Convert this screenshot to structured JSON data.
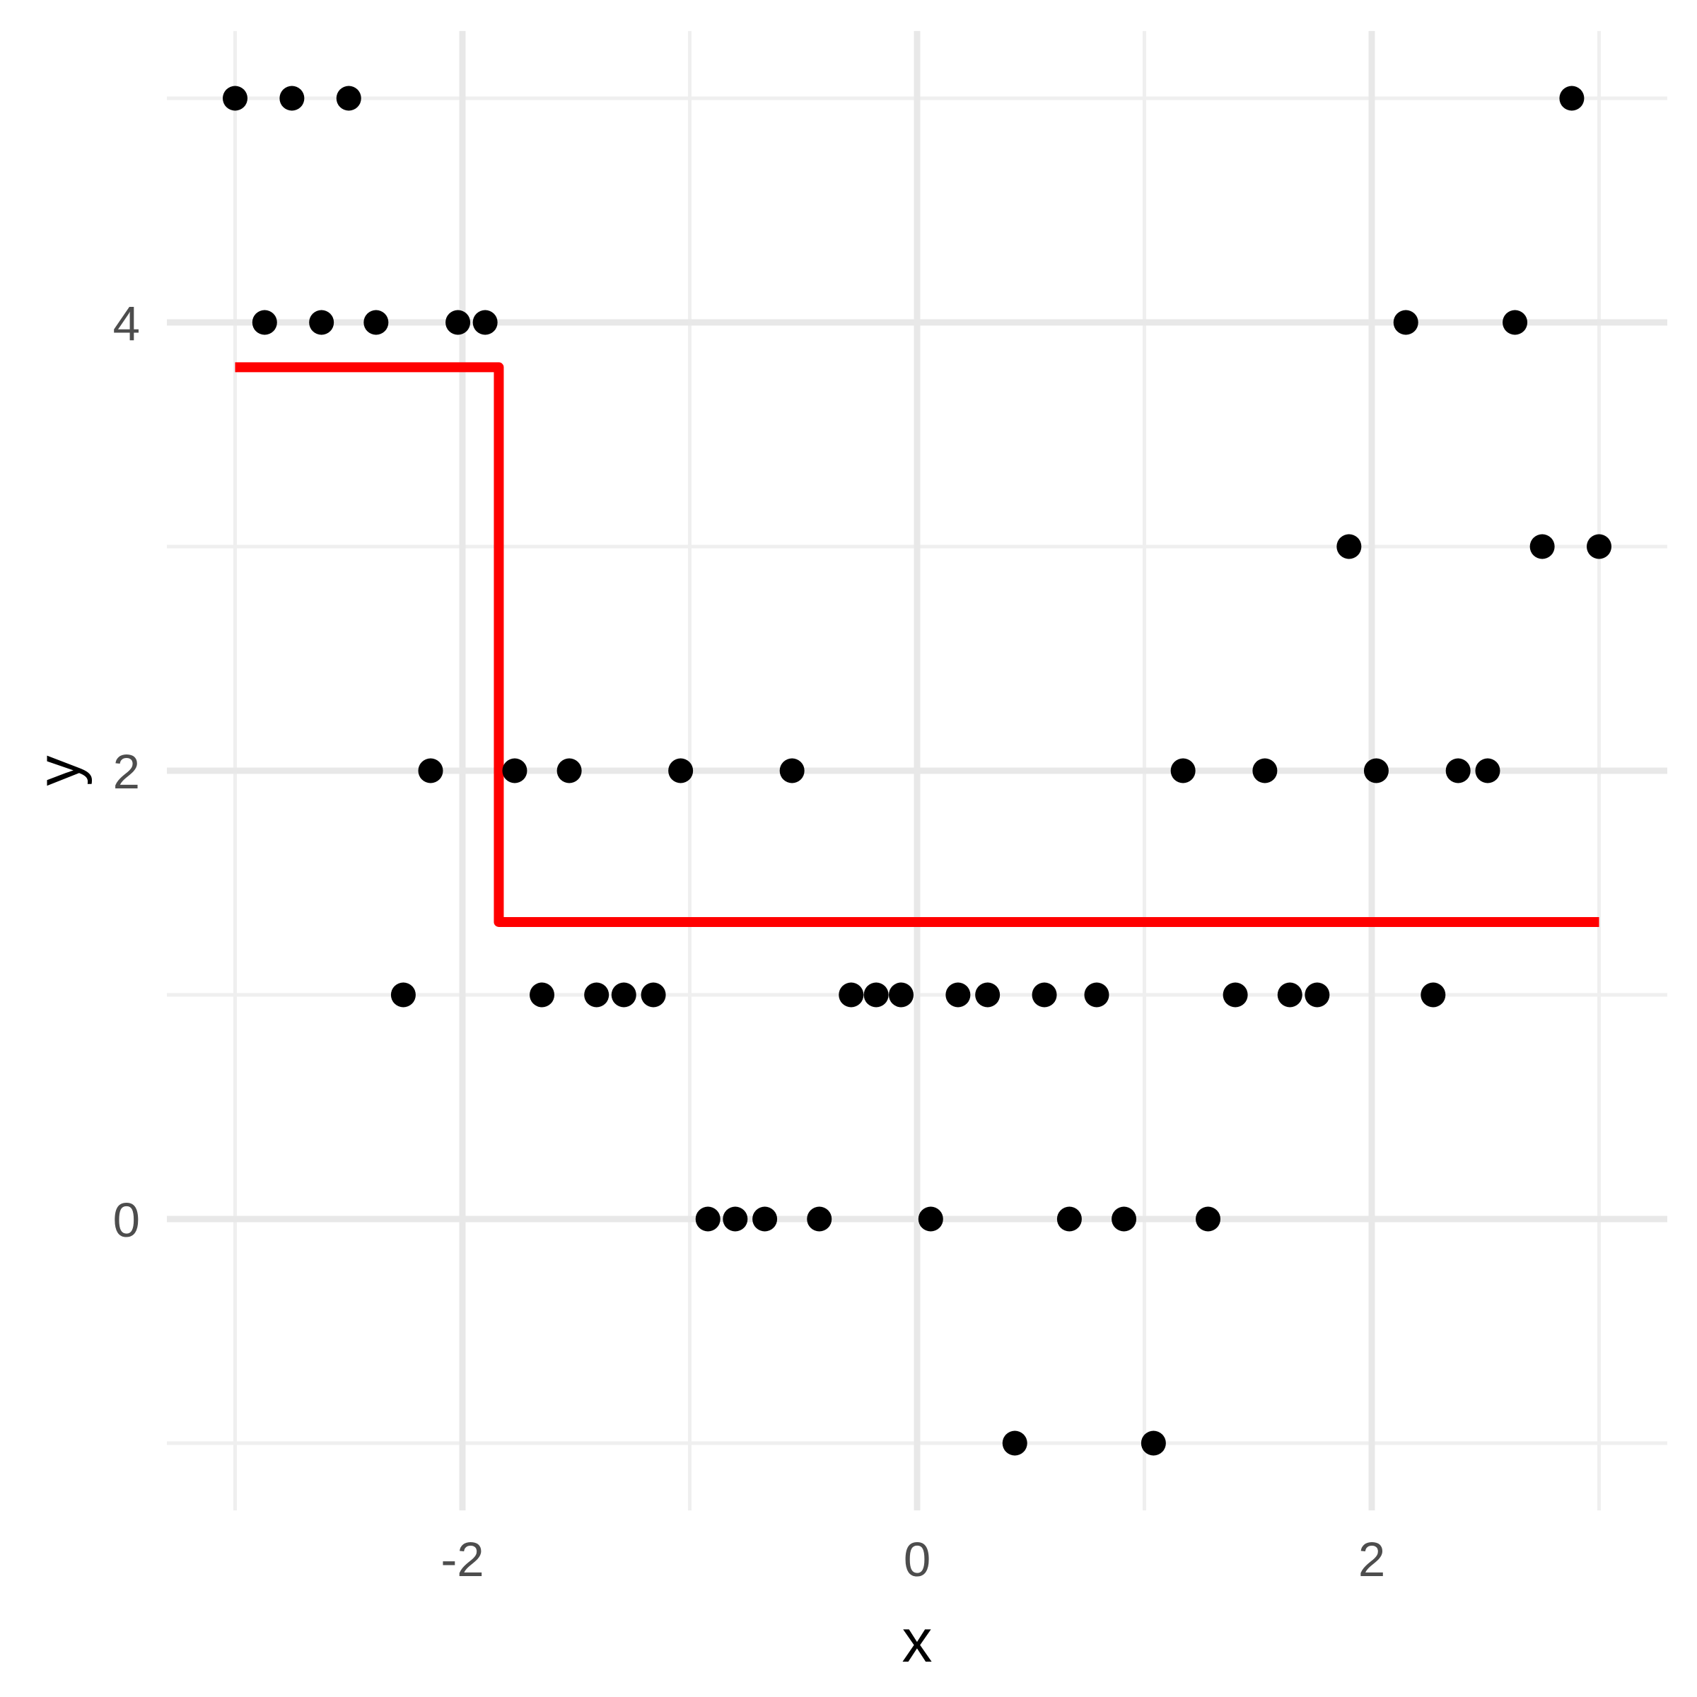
{
  "chart_data": {
    "type": "scatter",
    "title": "",
    "xlabel": "x",
    "ylabel": "y",
    "x_axis": {
      "major_ticks": [
        -2,
        0,
        2
      ],
      "major_tick_labels": [
        "-2",
        "0",
        "2"
      ],
      "minor_ticks": [
        -3,
        -1,
        1,
        3
      ],
      "xlim": [
        -3.3,
        3.3
      ]
    },
    "y_axis": {
      "major_ticks": [
        4,
        2,
        0
      ],
      "major_tick_labels": [
        "4",
        "2",
        "0"
      ],
      "minor_ticks": [
        5,
        3,
        1,
        -1
      ],
      "ylim": [
        -1.3,
        5.3
      ]
    },
    "grid": {
      "on": true,
      "major_color": "#e8e8e8",
      "minor_color": "#efefef",
      "major_width": 9,
      "minor_width": 5
    },
    "points": [
      [
        -3.0,
        5
      ],
      [
        -2.75,
        5
      ],
      [
        -2.5,
        5
      ],
      [
        2.88,
        5
      ],
      [
        -2.87,
        4
      ],
      [
        -2.62,
        4
      ],
      [
        -2.38,
        4
      ],
      [
        -2.02,
        4
      ],
      [
        -1.9,
        4
      ],
      [
        2.15,
        4
      ],
      [
        2.63,
        4
      ],
      [
        1.9,
        3
      ],
      [
        2.75,
        3
      ],
      [
        3.0,
        3
      ],
      [
        -2.14,
        2
      ],
      [
        -1.77,
        2
      ],
      [
        -1.53,
        2
      ],
      [
        -1.04,
        2
      ],
      [
        -0.55,
        2
      ],
      [
        1.17,
        2
      ],
      [
        1.53,
        2
      ],
      [
        2.02,
        2
      ],
      [
        2.38,
        2
      ],
      [
        2.51,
        2
      ],
      [
        -2.26,
        1
      ],
      [
        -1.65,
        1
      ],
      [
        -1.41,
        1
      ],
      [
        -1.29,
        1
      ],
      [
        -1.16,
        1
      ],
      [
        -0.29,
        1
      ],
      [
        -0.18,
        1
      ],
      [
        -0.07,
        1
      ],
      [
        0.18,
        1
      ],
      [
        0.31,
        1
      ],
      [
        0.56,
        1
      ],
      [
        0.79,
        1
      ],
      [
        1.4,
        1
      ],
      [
        1.64,
        1
      ],
      [
        1.76,
        1
      ],
      [
        2.27,
        1
      ],
      [
        -0.92,
        0
      ],
      [
        -0.8,
        0
      ],
      [
        -0.67,
        0
      ],
      [
        -0.43,
        0
      ],
      [
        0.06,
        0
      ],
      [
        0.67,
        0
      ],
      [
        0.91,
        0
      ],
      [
        1.28,
        0
      ],
      [
        0.43,
        -1
      ],
      [
        1.04,
        -1
      ]
    ],
    "point_style": {
      "color": "#000000",
      "radius": 17.5
    },
    "step_line": {
      "x_min": -3.0,
      "x_split": -1.84,
      "x_max": 3.0,
      "y_left": 3.8,
      "y_right": 1.325,
      "color": "#ff0000",
      "width": 14
    },
    "text_style": {
      "tick_label_color": "#4d4d4d",
      "tick_label_size": 69,
      "axis_title_color": "#000000",
      "axis_title_size": 86
    },
    "legend": {
      "visible": false
    }
  }
}
